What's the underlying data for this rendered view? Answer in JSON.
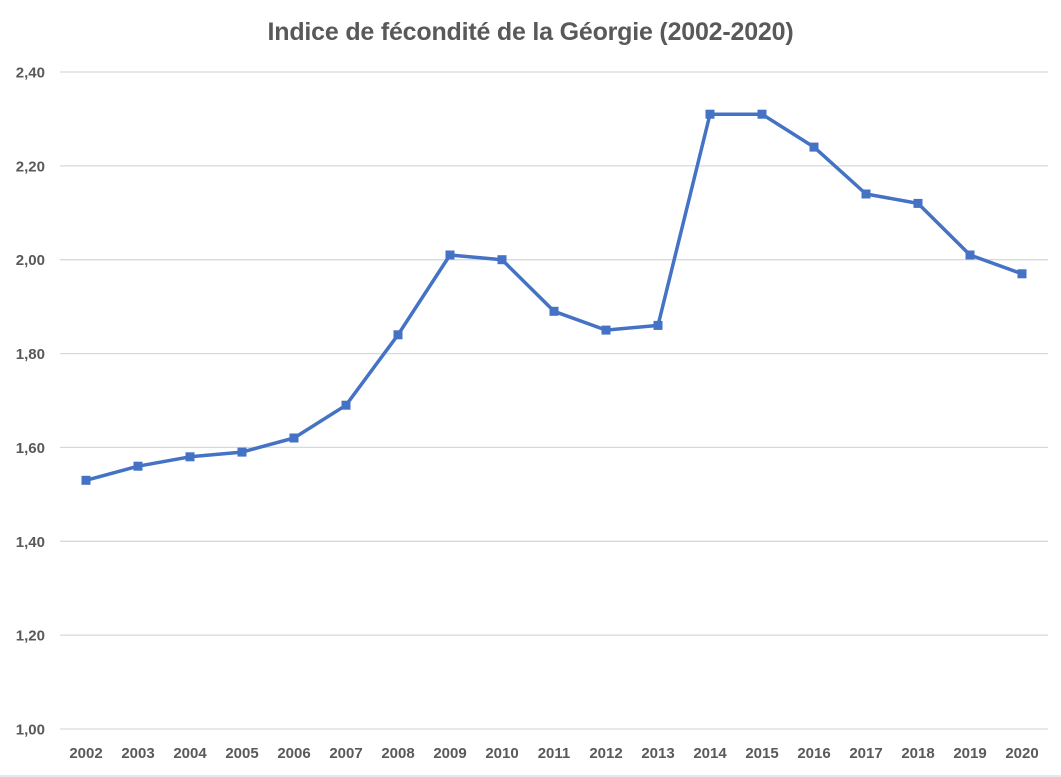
{
  "chart_data": {
    "type": "line",
    "title": "Indice de fécondité de la Géorgie (2002-2020)",
    "categories": [
      "2002",
      "2003",
      "2004",
      "2005",
      "2006",
      "2007",
      "2008",
      "2009",
      "2010",
      "2011",
      "2012",
      "2013",
      "2014",
      "2015",
      "2016",
      "2017",
      "2018",
      "2019",
      "2020"
    ],
    "values": [
      1.53,
      1.56,
      1.58,
      1.59,
      1.62,
      1.69,
      1.84,
      2.01,
      2.0,
      1.89,
      1.85,
      1.86,
      2.31,
      2.31,
      2.24,
      2.14,
      2.12,
      2.01,
      1.97
    ],
    "xlabel": "",
    "ylabel": "",
    "ylim": [
      1.0,
      2.4
    ],
    "yticks": [
      {
        "value": 1.0,
        "label": "1,00"
      },
      {
        "value": 1.2,
        "label": "1,20"
      },
      {
        "value": 1.4,
        "label": "1,40"
      },
      {
        "value": 1.6,
        "label": "1,60"
      },
      {
        "value": 1.8,
        "label": "1,80"
      },
      {
        "value": 2.0,
        "label": "2,00"
      },
      {
        "value": 2.2,
        "label": "2,20"
      },
      {
        "value": 2.4,
        "label": "2,40"
      }
    ],
    "grid": true,
    "legend_position": "none",
    "marker": "square",
    "colors": {
      "line": "#4472C4",
      "marker": "#4472C4",
      "grid": "#D9D9D9",
      "axis_text": "#595959",
      "title_text": "#595959",
      "background": "#FFFFFF"
    }
  }
}
